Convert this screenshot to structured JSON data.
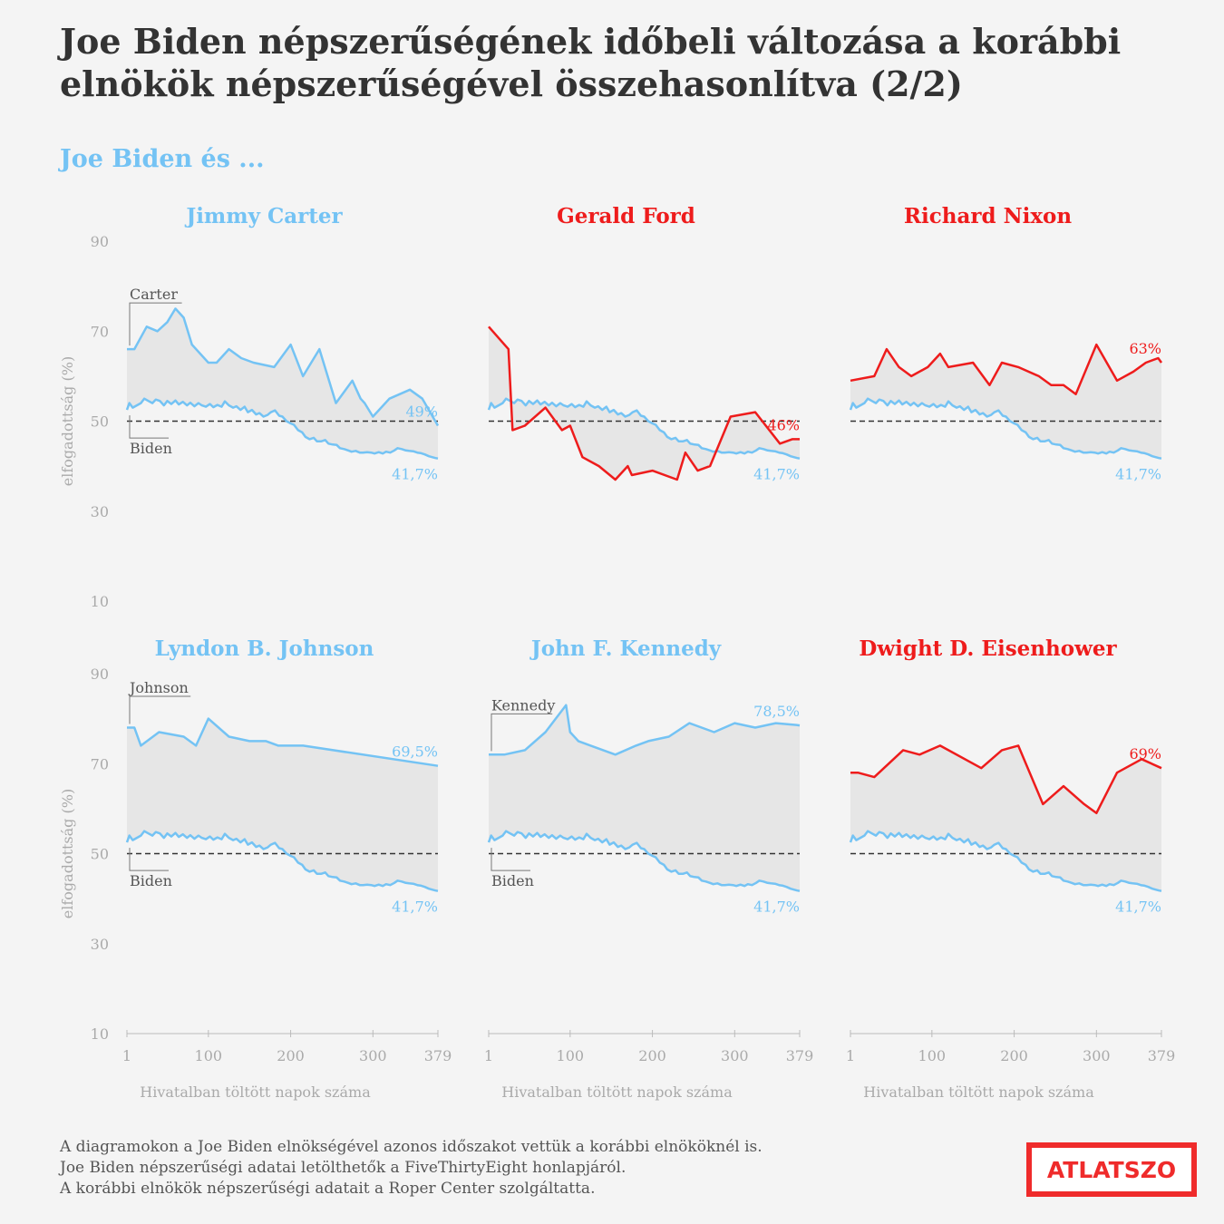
{
  "title": "Joe Biden népszerűségének időbeli változása a korábbi elnökök népszerűségével összehasonlítva (2/2)",
  "subtitle": "Joe Biden és ...",
  "footer": {
    "line1": "A diagramokon a Joe Biden elnökségével azonos időszakot vettük a korábbi elnököknél is.",
    "line2": "Joe Biden népszerűségi adatai letölthetők a FiveThirtyEight honlapjáról.",
    "line3": "A korábbi elnökök népszerűségi adatait a Roper Center szolgáltatta."
  },
  "logo": {
    "text": "ATLATSZO"
  },
  "colors": {
    "biden": "#74c3f4",
    "red": "#ee1c1c",
    "fill": "#e6e6e6",
    "axis_text": "#aaaaaa",
    "dark": "#333333"
  },
  "chart_data": {
    "type": "line",
    "ylabel": "elfogadottság (%)",
    "xlabel": "Hivatalban töltött napok száma",
    "ylim": [
      10,
      90
    ],
    "yticks": [
      10,
      30,
      50,
      70,
      90
    ],
    "xlim": [
      1,
      379
    ],
    "xticks": [
      1,
      100,
      200,
      300,
      379
    ],
    "reference_line": 50,
    "biden": {
      "name": "Biden",
      "end_label": "41,7%",
      "x": [
        1,
        4,
        8,
        13,
        18,
        22,
        27,
        32,
        36,
        41,
        46,
        50,
        55,
        60,
        64,
        69,
        74,
        78,
        83,
        88,
        92,
        97,
        102,
        106,
        111,
        116,
        120,
        125,
        130,
        134,
        139,
        144,
        148,
        153,
        158,
        162,
        167,
        172,
        176,
        181,
        186,
        190,
        195,
        200,
        204,
        209,
        214,
        218,
        223,
        228,
        232,
        237,
        242,
        246,
        251,
        256,
        260,
        265,
        270,
        274,
        279,
        284,
        288,
        293,
        298,
        302,
        307,
        312,
        316,
        321,
        326,
        330,
        335,
        340,
        344,
        349,
        354,
        358,
        363,
        368,
        372,
        376,
        379
      ],
      "y": [
        52.5,
        54,
        53,
        53.5,
        54,
        55,
        54.5,
        54,
        54.8,
        54.5,
        53.5,
        54.5,
        53.8,
        54.6,
        53.7,
        54.3,
        53.5,
        54.1,
        53.3,
        54,
        53.5,
        53.2,
        53.8,
        53.1,
        53.6,
        53.2,
        54.4,
        53.5,
        53,
        53.3,
        52.5,
        53.2,
        52,
        52.5,
        51.5,
        51.8,
        51,
        51.4,
        52,
        52.4,
        51.2,
        51,
        50,
        49.5,
        49.2,
        48,
        47.5,
        46.5,
        46,
        46.3,
        45.5,
        45.5,
        45.8,
        45,
        44.8,
        44.7,
        44,
        43.8,
        43.5,
        43.2,
        43.4,
        43,
        43,
        43.1,
        43,
        42.8,
        43.1,
        42.8,
        43.2,
        43,
        43.5,
        44,
        43.8,
        43.5,
        43.4,
        43.3,
        43,
        42.9,
        42.6,
        42.2,
        42,
        41.8,
        41.7
      ]
    },
    "panels": [
      {
        "name": "Jimmy Carter",
        "label": "Carter",
        "color": "#74c3f4",
        "end_label": "49%",
        "x": [
          1,
          10,
          25,
          38,
          50,
          60,
          70,
          80,
          100,
          110,
          125,
          140,
          155,
          180,
          200,
          215,
          235,
          255,
          275,
          285,
          290,
          300,
          320,
          345,
          360,
          379
        ],
        "y": [
          66,
          66,
          71,
          70,
          72,
          75,
          73,
          67,
          63,
          63,
          66,
          64,
          63,
          62,
          67,
          60,
          66,
          54,
          59,
          55,
          54,
          51,
          55,
          57,
          55,
          49
        ]
      },
      {
        "name": "Gerald Ford",
        "label": null,
        "color": "#ee1c1c",
        "end_label": "46%",
        "x": [
          1,
          25,
          30,
          45,
          70,
          90,
          100,
          115,
          135,
          155,
          170,
          175,
          200,
          230,
          240,
          255,
          270,
          295,
          325,
          355,
          370,
          379
        ],
        "y": [
          71,
          66,
          48,
          49,
          53,
          48,
          49,
          42,
          40,
          37,
          40,
          38,
          39,
          37,
          43,
          39,
          40,
          51,
          52,
          45,
          46,
          46
        ]
      },
      {
        "name": "Richard Nixon",
        "label": null,
        "color": "#ee1c1c",
        "end_label": "63%",
        "x": [
          1,
          30,
          45,
          60,
          75,
          95,
          110,
          120,
          150,
          170,
          185,
          205,
          230,
          245,
          260,
          275,
          300,
          325,
          345,
          360,
          375,
          379
        ],
        "y": [
          59,
          60,
          66,
          62,
          60,
          62,
          65,
          62,
          63,
          58,
          63,
          62,
          60,
          58,
          58,
          56,
          67,
          59,
          61,
          63,
          64,
          63
        ]
      },
      {
        "name": "Lyndon B. Johnson",
        "label": "Johnson",
        "color": "#74c3f4",
        "end_label": "69,5%",
        "x": [
          1,
          10,
          18,
          40,
          70,
          85,
          100,
          125,
          150,
          170,
          185,
          215,
          379
        ],
        "y": [
          78,
          78,
          74,
          77,
          76,
          74,
          80,
          76,
          75,
          75,
          74,
          74,
          69.5
        ]
      },
      {
        "name": "John F. Kennedy",
        "label": "Kennedy",
        "color": "#74c3f4",
        "end_label": "78,5%",
        "x": [
          1,
          20,
          45,
          70,
          95,
          100,
          110,
          125,
          155,
          180,
          195,
          220,
          245,
          275,
          300,
          325,
          350,
          375,
          379
        ],
        "y": [
          72,
          72,
          73,
          77,
          83,
          77,
          75,
          74,
          72,
          74,
          75,
          76,
          79,
          77,
          79,
          78,
          79,
          78.6,
          78.5
        ]
      },
      {
        "name": "Dwight D. Eisenhower",
        "label": null,
        "color": "#ee1c1c",
        "end_label": "69%",
        "x": [
          1,
          10,
          30,
          65,
          85,
          110,
          160,
          185,
          205,
          235,
          260,
          285,
          300,
          325,
          355,
          379
        ],
        "y": [
          68,
          68,
          67,
          73,
          72,
          74,
          69,
          73,
          74,
          61,
          65,
          61,
          59,
          68,
          71,
          69
        ]
      }
    ]
  }
}
